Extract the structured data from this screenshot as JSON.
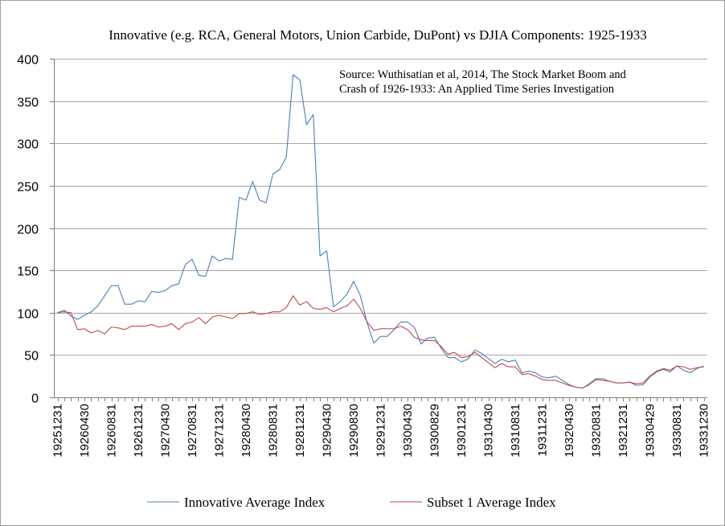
{
  "chart_data": {
    "type": "line",
    "title": "Innovative (e.g. RCA, General Motors, Union Carbide, DuPont) vs DJIA Components: 1925-1933",
    "annotation": [
      "Source: Wuthisatian et al, 2014, The Stock Market Boom and",
      "Crash of 1926-1933: An Applied Time Series Investigation"
    ],
    "xlabel": "",
    "ylabel": "",
    "ylim": [
      0,
      400
    ],
    "yticks": [
      0,
      50,
      100,
      150,
      200,
      250,
      300,
      350,
      400
    ],
    "grid": true,
    "legend_position": "bottom",
    "x_start": "1925-12-31",
    "x_tick_labels": [
      "19251231",
      "19260430",
      "19260831",
      "19261231",
      "19270430",
      "19270831",
      "19271231",
      "19280430",
      "19280831",
      "19281231",
      "19290430",
      "19290830",
      "19291231",
      "19300430",
      "19300829",
      "19301231",
      "19310430",
      "19310831",
      "19311231",
      "19320430",
      "19320831",
      "19321231",
      "19330429",
      "19330831",
      "19331230"
    ],
    "series": [
      {
        "name": "Innovative Average Index",
        "color": "#4a7ebb",
        "values": [
          100,
          103,
          96,
          92,
          97,
          101,
          108,
          120,
          132,
          132,
          110,
          110,
          114,
          113,
          125,
          124,
          126,
          132,
          134,
          157,
          163,
          144,
          143,
          167,
          161,
          164,
          163,
          236,
          233,
          255,
          233,
          230,
          264,
          269,
          284,
          381,
          375,
          322,
          334,
          167,
          173,
          107,
          113,
          122,
          137,
          120,
          88,
          64,
          72,
          72,
          80,
          89,
          89,
          83,
          63,
          70,
          71,
          58,
          47,
          47,
          42,
          45,
          56,
          52,
          46,
          40,
          45,
          42,
          44,
          29,
          31,
          29,
          24,
          23,
          25,
          20,
          15,
          12,
          11,
          16,
          22,
          22,
          19,
          17,
          17,
          18,
          14,
          15,
          24,
          30,
          33,
          30,
          37,
          32,
          29,
          34,
          37
        ]
      },
      {
        "name": "Subset 1 Average Index",
        "color": "#be4b48",
        "values": [
          100,
          101,
          100,
          80,
          81,
          76,
          79,
          75,
          83,
          82,
          80,
          84,
          84,
          84,
          86,
          83,
          84,
          87,
          80,
          87,
          89,
          94,
          87,
          95,
          97,
          95,
          93,
          99,
          99,
          101,
          98,
          99,
          101,
          101,
          106,
          120,
          109,
          113,
          105,
          104,
          106,
          101,
          105,
          108,
          116,
          105,
          89,
          79,
          81,
          81,
          81,
          84,
          80,
          71,
          68,
          67,
          67,
          60,
          51,
          53,
          47,
          48,
          53,
          47,
          41,
          35,
          40,
          36,
          36,
          27,
          28,
          25,
          21,
          20,
          20,
          17,
          14,
          12,
          11,
          15,
          21,
          20,
          19,
          17,
          17,
          18,
          16,
          17,
          25,
          31,
          34,
          32,
          37,
          36,
          33,
          35,
          36
        ]
      }
    ]
  }
}
